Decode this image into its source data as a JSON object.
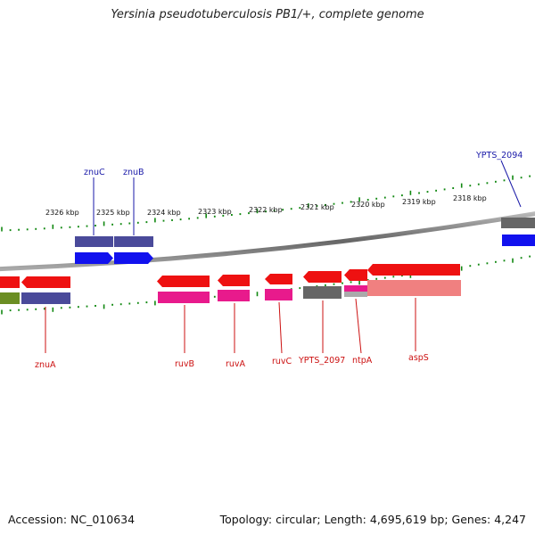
{
  "header": {
    "title": "Yersinia pseudotuberculosis PB1/+, complete genome"
  },
  "footer": {
    "accession": "Accession: NC_010634",
    "stats": "Topology: circular; Length: 4,695,619 bp; Genes: 4,247"
  },
  "scale": {
    "ticks": [
      {
        "label": "2326 kbp"
      },
      {
        "label": "2325 kbp"
      },
      {
        "label": "2324 kbp"
      },
      {
        "label": "2323 kbp"
      },
      {
        "label": "2322 kbp"
      },
      {
        "label": "2321 kbp"
      },
      {
        "label": "2320 kbp"
      },
      {
        "label": "2319 kbp"
      },
      {
        "label": "2318 kbp"
      }
    ]
  },
  "genes": {
    "forward_labels": [
      {
        "name": "znuC"
      },
      {
        "name": "znuB"
      },
      {
        "name": "YPTS_2094"
      }
    ],
    "reverse_labels": [
      {
        "name": "znuA"
      },
      {
        "name": "ruvB"
      },
      {
        "name": "ruvA"
      },
      {
        "name": "ruvC"
      },
      {
        "name": "YPTS_2097"
      },
      {
        "name": "ntpA"
      },
      {
        "name": "aspS"
      }
    ]
  },
  "colors": {
    "gene_red": "#ee1111",
    "gene_blue": "#1111ee",
    "cog_purple": "#4a4a9a",
    "cog_pink": "#e81a8c",
    "cog_gray": "#666666",
    "cog_salmon": "#f08080",
    "cog_olive": "#6b8e23",
    "tick_green": "#118811",
    "backbone_gray": "#777777",
    "label_blue": "#1a1aa8",
    "label_red": "#cc1111"
  }
}
